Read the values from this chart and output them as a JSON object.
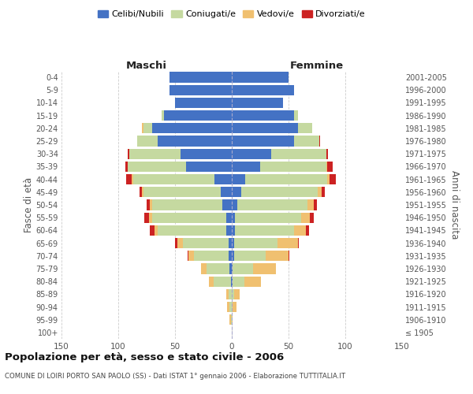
{
  "age_groups": [
    "100+",
    "95-99",
    "90-94",
    "85-89",
    "80-84",
    "75-79",
    "70-74",
    "65-69",
    "60-64",
    "55-59",
    "50-54",
    "45-49",
    "40-44",
    "35-39",
    "30-34",
    "25-29",
    "20-24",
    "15-19",
    "10-14",
    "5-9",
    "0-4"
  ],
  "birth_years": [
    "≤ 1905",
    "1906-1910",
    "1911-1915",
    "1916-1920",
    "1921-1925",
    "1926-1930",
    "1931-1935",
    "1936-1940",
    "1941-1945",
    "1946-1950",
    "1951-1955",
    "1956-1960",
    "1961-1965",
    "1966-1970",
    "1971-1975",
    "1976-1980",
    "1981-1985",
    "1986-1990",
    "1991-1995",
    "1996-2000",
    "2001-2005"
  ],
  "males": {
    "celibi": [
      0,
      0,
      0,
      0,
      1,
      2,
      3,
      3,
      5,
      5,
      8,
      10,
      15,
      40,
      45,
      65,
      70,
      60,
      50,
      55,
      55
    ],
    "coniugati": [
      0,
      1,
      2,
      3,
      15,
      20,
      30,
      40,
      60,
      65,
      62,
      68,
      72,
      52,
      45,
      18,
      8,
      2,
      0,
      0,
      0
    ],
    "vedovi": [
      0,
      1,
      2,
      2,
      4,
      5,
      5,
      5,
      3,
      3,
      2,
      1,
      1,
      0,
      0,
      0,
      1,
      0,
      0,
      0,
      0
    ],
    "divorziati": [
      0,
      0,
      0,
      0,
      0,
      0,
      1,
      2,
      4,
      4,
      3,
      2,
      5,
      2,
      2,
      0,
      0,
      0,
      0,
      0,
      0
    ]
  },
  "females": {
    "nubili": [
      0,
      0,
      0,
      0,
      1,
      1,
      2,
      2,
      3,
      3,
      5,
      8,
      12,
      25,
      35,
      55,
      58,
      55,
      45,
      55,
      50
    ],
    "coniugate": [
      0,
      0,
      1,
      2,
      10,
      18,
      28,
      38,
      52,
      58,
      62,
      68,
      72,
      58,
      48,
      22,
      13,
      3,
      0,
      0,
      0
    ],
    "vedove": [
      0,
      1,
      3,
      5,
      15,
      20,
      20,
      18,
      10,
      8,
      5,
      3,
      2,
      1,
      0,
      0,
      0,
      0,
      0,
      0,
      0
    ],
    "divorziate": [
      0,
      0,
      0,
      0,
      0,
      0,
      1,
      1,
      3,
      3,
      3,
      3,
      6,
      5,
      2,
      1,
      0,
      0,
      0,
      0,
      0
    ]
  },
  "color_celibi": "#4472C4",
  "color_coniugati": "#C5D9A0",
  "color_vedovi": "#F0C070",
  "color_divorziati": "#CC2222",
  "title": "Popolazione per età, sesso e stato civile - 2006",
  "subtitle": "COMUNE DI LOIRI PORTO SAN PAOLO (SS) - Dati ISTAT 1° gennaio 2006 - Elaborazione TUTTITALIA.IT",
  "xlabel_left": "Maschi",
  "xlabel_right": "Femmine",
  "ylabel_left": "Fasce di età",
  "ylabel_right": "Anni di nascita",
  "xlim": 150,
  "background_color": "#ffffff",
  "grid_color": "#cccccc"
}
